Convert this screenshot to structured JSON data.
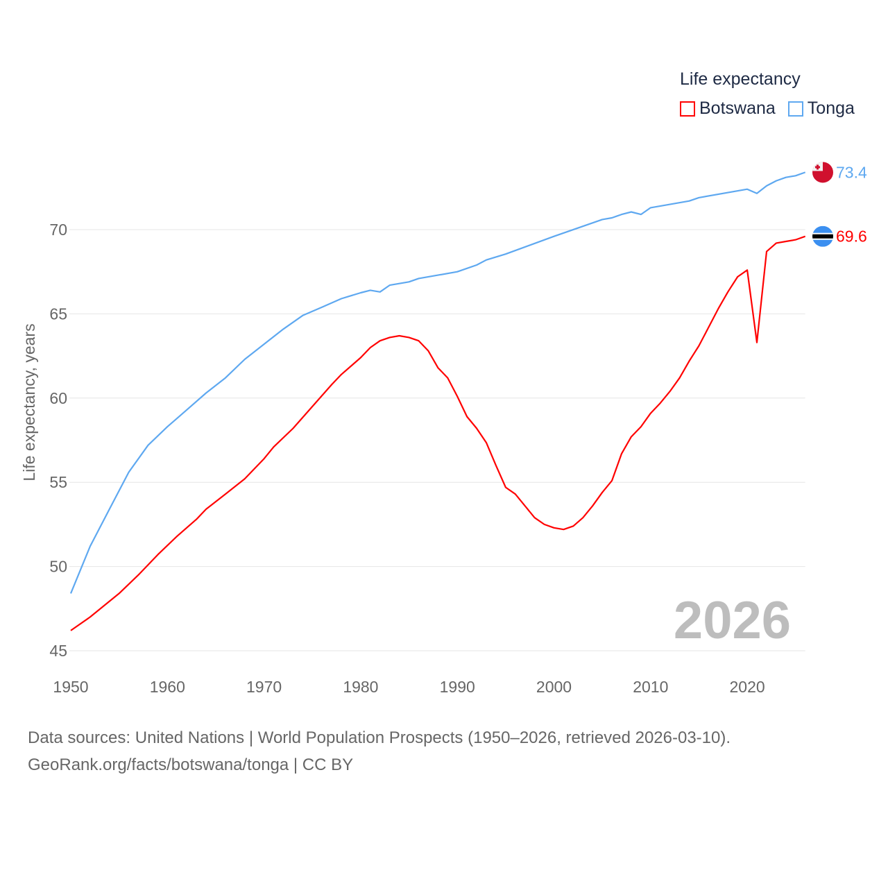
{
  "chart_data": {
    "type": "line",
    "title": "Life expectancy",
    "ylabel": "Life expectancy, years",
    "xlabel": "",
    "xlim": [
      1950,
      2026
    ],
    "ylim": [
      45,
      74
    ],
    "yticks": [
      45,
      50,
      55,
      60,
      65,
      70
    ],
    "xticks": [
      1950,
      1960,
      1970,
      1980,
      1990,
      2000,
      2010,
      2020
    ],
    "grid": true,
    "legend_placement": "top-right",
    "year_label": "2026",
    "series": [
      {
        "name": "Botswana",
        "color": "#ff0000",
        "end_label": "69.6",
        "x": [
          1950,
          1952,
          1955,
          1957,
          1959,
          1961,
          1963,
          1964,
          1966,
          1968,
          1970,
          1971,
          1973,
          1975,
          1977,
          1978,
          1980,
          1981,
          1982,
          1983,
          1984,
          1985,
          1986,
          1987,
          1988,
          1989,
          1990,
          1991,
          1992,
          1993,
          1994,
          1995,
          1996,
          1997,
          1998,
          1999,
          2000,
          2001,
          2002,
          2003,
          2004,
          2005,
          2006,
          2007,
          2008,
          2009,
          2010,
          2011,
          2012,
          2013,
          2014,
          2015,
          2016,
          2017,
          2018,
          2019,
          2020,
          2021,
          2022,
          2023,
          2024,
          2025,
          2026
        ],
        "y": [
          46.2,
          47.0,
          48.4,
          49.5,
          50.7,
          51.8,
          52.8,
          53.4,
          54.3,
          55.2,
          56.4,
          57.1,
          58.2,
          59.5,
          60.8,
          61.4,
          62.4,
          63.0,
          63.4,
          63.6,
          63.7,
          63.6,
          63.4,
          62.8,
          61.8,
          61.2,
          60.1,
          58.9,
          58.2,
          57.35,
          56.0,
          54.7,
          54.3,
          53.6,
          52.9,
          52.5,
          52.3,
          52.2,
          52.4,
          52.9,
          53.6,
          54.4,
          55.1,
          56.7,
          57.7,
          58.3,
          59.1,
          59.7,
          60.4,
          61.2,
          62.2,
          63.1,
          64.2,
          65.3,
          66.3,
          67.2,
          67.6,
          63.3,
          68.7,
          69.2,
          69.3,
          69.4,
          69.6
        ]
      },
      {
        "name": "Tonga",
        "color": "#5ea8f0",
        "end_label": "73.4",
        "x": [
          1950,
          1952,
          1954,
          1956,
          1958,
          1960,
          1962,
          1964,
          1966,
          1968,
          1970,
          1972,
          1974,
          1976,
          1978,
          1980,
          1981,
          1982,
          1983,
          1985,
          1986,
          1988,
          1990,
          1992,
          1993,
          1995,
          2000,
          2005,
          2006,
          2007,
          2008,
          2009,
          2010,
          2014,
          2015,
          2020,
          2021,
          2022,
          2023,
          2024,
          2025,
          2026
        ],
        "y": [
          48.4,
          51.2,
          53.4,
          55.6,
          57.2,
          58.3,
          59.3,
          60.3,
          61.2,
          62.3,
          63.2,
          64.1,
          64.9,
          65.4,
          65.9,
          66.25,
          66.4,
          66.3,
          66.7,
          66.9,
          67.1,
          67.3,
          67.5,
          67.9,
          68.2,
          68.55,
          69.6,
          70.6,
          70.7,
          70.9,
          71.05,
          70.9,
          71.3,
          71.7,
          71.9,
          72.4,
          72.15,
          72.6,
          72.9,
          73.1,
          73.2,
          73.4
        ]
      }
    ]
  },
  "legend": {
    "title": "Life expectancy",
    "items": [
      "Botswana",
      "Tonga"
    ]
  },
  "footer": {
    "line1": "Data sources: United Nations | World Population Prospects (1950–2026, retrieved 2026-03-10).",
    "line2": "GeoRank.org/facts/botswana/tonga | CC BY"
  }
}
